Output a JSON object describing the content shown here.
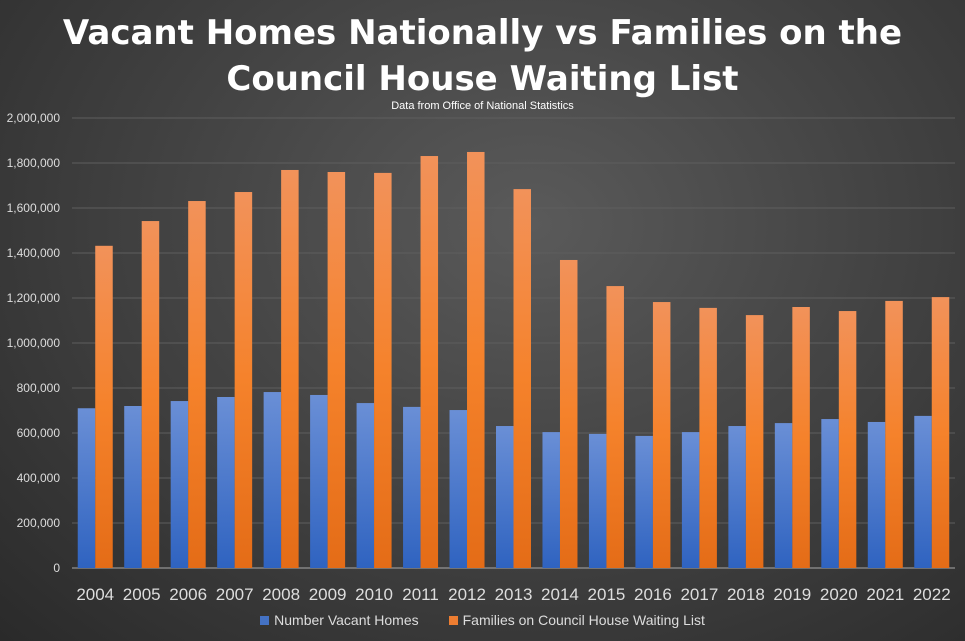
{
  "chart_data": {
    "type": "bar",
    "title": "Vacant Homes Nationally vs Families on the Council House Waiting List",
    "subtitle": "Data from Office of National Statistics",
    "categories": [
      "2004",
      "2005",
      "2006",
      "2007",
      "2008",
      "2009",
      "2010",
      "2011",
      "2012",
      "2013",
      "2014",
      "2015",
      "2016",
      "2017",
      "2018",
      "2019",
      "2020",
      "2021",
      "2022"
    ],
    "series": [
      {
        "name": "Number Vacant Homes",
        "color": "#4472C4",
        "values": [
          710000,
          720000,
          742000,
          760000,
          782000,
          769000,
          733000,
          716000,
          702000,
          631000,
          604000,
          596000,
          587000,
          604000,
          631000,
          644000,
          662000,
          649000,
          676000
        ]
      },
      {
        "name": "Families on Council House Waiting List",
        "color": "#ED7D31",
        "values": [
          1432000,
          1542000,
          1631000,
          1671000,
          1769000,
          1760000,
          1756000,
          1831000,
          1849000,
          1684000,
          1369000,
          1253000,
          1182000,
          1156000,
          1124000,
          1160000,
          1142000,
          1187000,
          1204000
        ]
      }
    ],
    "ylim": [
      0,
      2000000
    ],
    "yticks": [
      "0",
      "200,000",
      "400,000",
      "600,000",
      "800,000",
      "1,000,000",
      "1,200,000",
      "1,400,000",
      "1,600,000",
      "1,800,000",
      "2,000,000"
    ],
    "grid": true,
    "legend": "bottom"
  }
}
